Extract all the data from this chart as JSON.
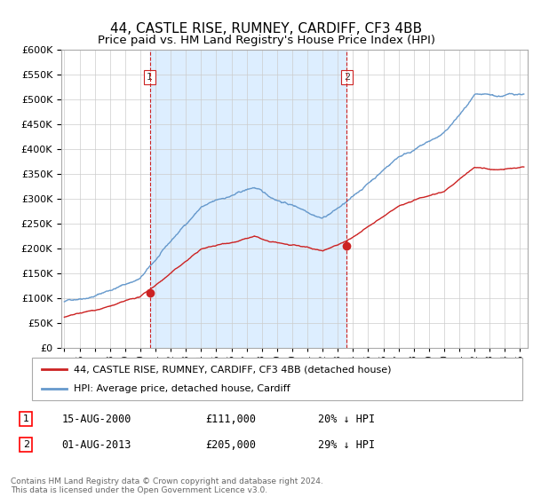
{
  "title": "44, CASTLE RISE, RUMNEY, CARDIFF, CF3 4BB",
  "subtitle": "Price paid vs. HM Land Registry's House Price Index (HPI)",
  "title_fontsize": 11,
  "subtitle_fontsize": 9.5,
  "background_color": "#ffffff",
  "plot_bg_color": "#ffffff",
  "shade_color": "#ddeeff",
  "grid_color": "#cccccc",
  "hpi_color": "#6699cc",
  "price_color": "#cc2222",
  "sale1_year": 2000.625,
  "sale1_price": 111000,
  "sale2_year": 2013.583,
  "sale2_price": 205000,
  "legend_label_price": "44, CASTLE RISE, RUMNEY, CARDIFF, CF3 4BB (detached house)",
  "legend_label_hpi": "HPI: Average price, detached house, Cardiff",
  "footnote": "Contains HM Land Registry data © Crown copyright and database right 2024.\nThis data is licensed under the Open Government Licence v3.0.",
  "ylim_min": 0,
  "ylim_max": 600000,
  "yticks": [
    0,
    50000,
    100000,
    150000,
    200000,
    250000,
    300000,
    350000,
    400000,
    450000,
    500000,
    550000,
    600000
  ],
  "xticks": [
    1995,
    1996,
    1997,
    1998,
    1999,
    2000,
    2001,
    2002,
    2003,
    2004,
    2005,
    2006,
    2007,
    2008,
    2009,
    2010,
    2011,
    2012,
    2013,
    2014,
    2015,
    2016,
    2017,
    2018,
    2019,
    2020,
    2021,
    2022,
    2023,
    2024,
    2025
  ],
  "xlim_min": 1994.8,
  "xlim_max": 2025.5
}
